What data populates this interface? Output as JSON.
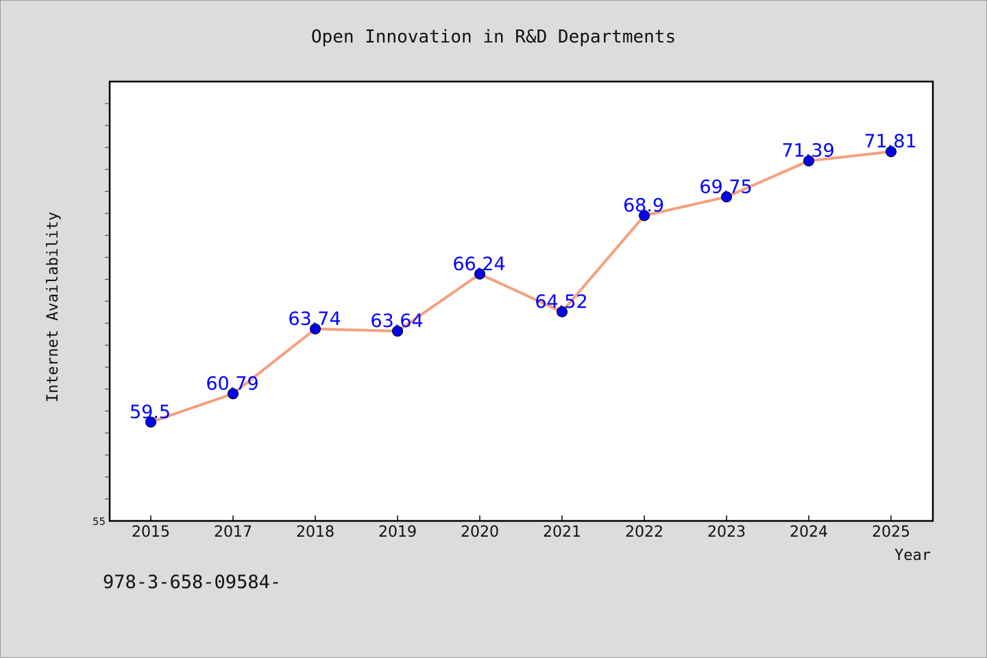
{
  "chart_data": {
    "type": "line",
    "title": "Open Innovation in R&D Departments",
    "xlabel": "Year",
    "ylabel": "Internet Availability",
    "categories": [
      "2015",
      "2017",
      "2018",
      "2019",
      "2020",
      "2021",
      "2022",
      "2023",
      "2024",
      "2025"
    ],
    "series": [
      {
        "values": [
          59.5,
          60.79,
          63.74,
          63.64,
          66.24,
          64.52,
          68.9,
          69.75,
          71.39,
          71.81
        ],
        "data_labels": [
          "59.5",
          "60.79",
          "63.74",
          "63.64",
          "66.24",
          "64.52",
          "68.9",
          "69.75",
          "71.39",
          "71.81"
        ]
      }
    ],
    "ylim": [
      55,
      75
    ],
    "y_tick_labels": [
      "55"
    ],
    "grid": false,
    "colors": {
      "line": "#f4a07c",
      "marker": "#0000ee",
      "data_label": "#0000ff",
      "plot_background": "#ffffff",
      "page_background": "#dcdcdc"
    }
  },
  "footer": {
    "isbn": "978-3-658-09584-"
  }
}
